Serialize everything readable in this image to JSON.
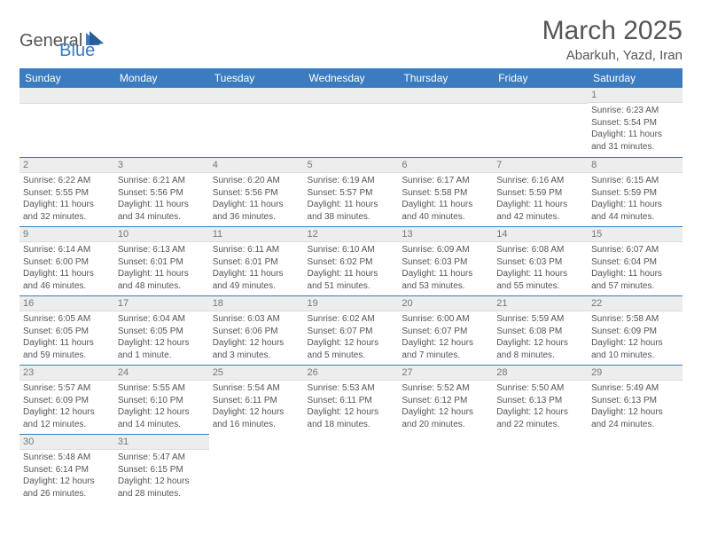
{
  "logo": {
    "text_dark": "General",
    "text_blue": "Blue"
  },
  "title": "March 2025",
  "location": "Abarkuh, Yazd, Iran",
  "weekdays": [
    "Sunday",
    "Monday",
    "Tuesday",
    "Wednesday",
    "Thursday",
    "Friday",
    "Saturday"
  ],
  "colors": {
    "header_bg": "#3b7bbf",
    "header_fg": "#ffffff",
    "daynum_bg": "#eceded",
    "rule": "#3b7bbf",
    "text": "#555555"
  },
  "weeks": [
    [
      null,
      null,
      null,
      null,
      null,
      null,
      {
        "n": "1",
        "sr": "Sunrise: 6:23 AM",
        "ss": "Sunset: 5:54 PM",
        "d1": "Daylight: 11 hours",
        "d2": "and 31 minutes."
      }
    ],
    [
      {
        "n": "2",
        "sr": "Sunrise: 6:22 AM",
        "ss": "Sunset: 5:55 PM",
        "d1": "Daylight: 11 hours",
        "d2": "and 32 minutes."
      },
      {
        "n": "3",
        "sr": "Sunrise: 6:21 AM",
        "ss": "Sunset: 5:56 PM",
        "d1": "Daylight: 11 hours",
        "d2": "and 34 minutes."
      },
      {
        "n": "4",
        "sr": "Sunrise: 6:20 AM",
        "ss": "Sunset: 5:56 PM",
        "d1": "Daylight: 11 hours",
        "d2": "and 36 minutes."
      },
      {
        "n": "5",
        "sr": "Sunrise: 6:19 AM",
        "ss": "Sunset: 5:57 PM",
        "d1": "Daylight: 11 hours",
        "d2": "and 38 minutes."
      },
      {
        "n": "6",
        "sr": "Sunrise: 6:17 AM",
        "ss": "Sunset: 5:58 PM",
        "d1": "Daylight: 11 hours",
        "d2": "and 40 minutes."
      },
      {
        "n": "7",
        "sr": "Sunrise: 6:16 AM",
        "ss": "Sunset: 5:59 PM",
        "d1": "Daylight: 11 hours",
        "d2": "and 42 minutes."
      },
      {
        "n": "8",
        "sr": "Sunrise: 6:15 AM",
        "ss": "Sunset: 5:59 PM",
        "d1": "Daylight: 11 hours",
        "d2": "and 44 minutes."
      }
    ],
    [
      {
        "n": "9",
        "sr": "Sunrise: 6:14 AM",
        "ss": "Sunset: 6:00 PM",
        "d1": "Daylight: 11 hours",
        "d2": "and 46 minutes."
      },
      {
        "n": "10",
        "sr": "Sunrise: 6:13 AM",
        "ss": "Sunset: 6:01 PM",
        "d1": "Daylight: 11 hours",
        "d2": "and 48 minutes."
      },
      {
        "n": "11",
        "sr": "Sunrise: 6:11 AM",
        "ss": "Sunset: 6:01 PM",
        "d1": "Daylight: 11 hours",
        "d2": "and 49 minutes."
      },
      {
        "n": "12",
        "sr": "Sunrise: 6:10 AM",
        "ss": "Sunset: 6:02 PM",
        "d1": "Daylight: 11 hours",
        "d2": "and 51 minutes."
      },
      {
        "n": "13",
        "sr": "Sunrise: 6:09 AM",
        "ss": "Sunset: 6:03 PM",
        "d1": "Daylight: 11 hours",
        "d2": "and 53 minutes."
      },
      {
        "n": "14",
        "sr": "Sunrise: 6:08 AM",
        "ss": "Sunset: 6:03 PM",
        "d1": "Daylight: 11 hours",
        "d2": "and 55 minutes."
      },
      {
        "n": "15",
        "sr": "Sunrise: 6:07 AM",
        "ss": "Sunset: 6:04 PM",
        "d1": "Daylight: 11 hours",
        "d2": "and 57 minutes."
      }
    ],
    [
      {
        "n": "16",
        "sr": "Sunrise: 6:05 AM",
        "ss": "Sunset: 6:05 PM",
        "d1": "Daylight: 11 hours",
        "d2": "and 59 minutes."
      },
      {
        "n": "17",
        "sr": "Sunrise: 6:04 AM",
        "ss": "Sunset: 6:05 PM",
        "d1": "Daylight: 12 hours",
        "d2": "and 1 minute."
      },
      {
        "n": "18",
        "sr": "Sunrise: 6:03 AM",
        "ss": "Sunset: 6:06 PM",
        "d1": "Daylight: 12 hours",
        "d2": "and 3 minutes."
      },
      {
        "n": "19",
        "sr": "Sunrise: 6:02 AM",
        "ss": "Sunset: 6:07 PM",
        "d1": "Daylight: 12 hours",
        "d2": "and 5 minutes."
      },
      {
        "n": "20",
        "sr": "Sunrise: 6:00 AM",
        "ss": "Sunset: 6:07 PM",
        "d1": "Daylight: 12 hours",
        "d2": "and 7 minutes."
      },
      {
        "n": "21",
        "sr": "Sunrise: 5:59 AM",
        "ss": "Sunset: 6:08 PM",
        "d1": "Daylight: 12 hours",
        "d2": "and 8 minutes."
      },
      {
        "n": "22",
        "sr": "Sunrise: 5:58 AM",
        "ss": "Sunset: 6:09 PM",
        "d1": "Daylight: 12 hours",
        "d2": "and 10 minutes."
      }
    ],
    [
      {
        "n": "23",
        "sr": "Sunrise: 5:57 AM",
        "ss": "Sunset: 6:09 PM",
        "d1": "Daylight: 12 hours",
        "d2": "and 12 minutes."
      },
      {
        "n": "24",
        "sr": "Sunrise: 5:55 AM",
        "ss": "Sunset: 6:10 PM",
        "d1": "Daylight: 12 hours",
        "d2": "and 14 minutes."
      },
      {
        "n": "25",
        "sr": "Sunrise: 5:54 AM",
        "ss": "Sunset: 6:11 PM",
        "d1": "Daylight: 12 hours",
        "d2": "and 16 minutes."
      },
      {
        "n": "26",
        "sr": "Sunrise: 5:53 AM",
        "ss": "Sunset: 6:11 PM",
        "d1": "Daylight: 12 hours",
        "d2": "and 18 minutes."
      },
      {
        "n": "27",
        "sr": "Sunrise: 5:52 AM",
        "ss": "Sunset: 6:12 PM",
        "d1": "Daylight: 12 hours",
        "d2": "and 20 minutes."
      },
      {
        "n": "28",
        "sr": "Sunrise: 5:50 AM",
        "ss": "Sunset: 6:13 PM",
        "d1": "Daylight: 12 hours",
        "d2": "and 22 minutes."
      },
      {
        "n": "29",
        "sr": "Sunrise: 5:49 AM",
        "ss": "Sunset: 6:13 PM",
        "d1": "Daylight: 12 hours",
        "d2": "and 24 minutes."
      }
    ],
    [
      {
        "n": "30",
        "sr": "Sunrise: 5:48 AM",
        "ss": "Sunset: 6:14 PM",
        "d1": "Daylight: 12 hours",
        "d2": "and 26 minutes."
      },
      {
        "n": "31",
        "sr": "Sunrise: 5:47 AM",
        "ss": "Sunset: 6:15 PM",
        "d1": "Daylight: 12 hours",
        "d2": "and 28 minutes."
      },
      null,
      null,
      null,
      null,
      null
    ]
  ]
}
